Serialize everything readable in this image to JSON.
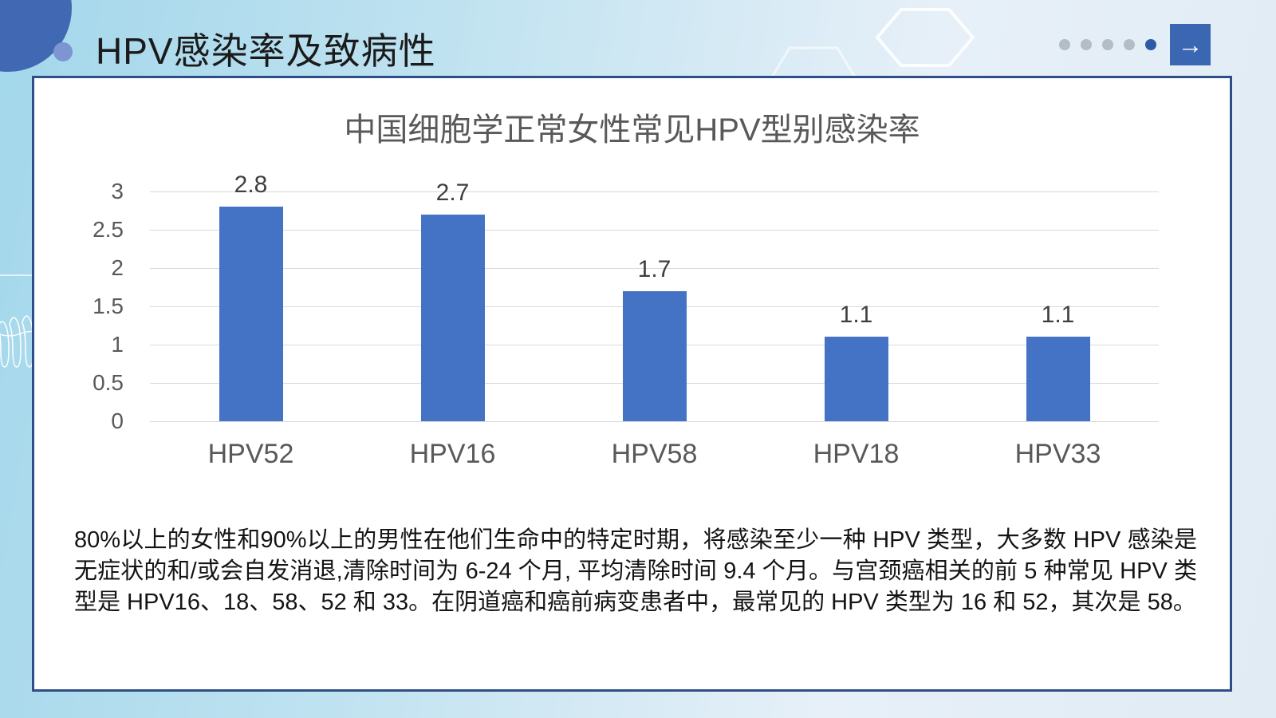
{
  "slide": {
    "title": "HPV感染率及致病性",
    "pagination": {
      "dots": [
        false,
        false,
        false,
        false,
        true
      ]
    },
    "next_button_icon": "→"
  },
  "colors": {
    "accent_blue": "#4472c4",
    "card_border": "#2e4e86",
    "active_dot": "#2d5ba7",
    "inactive_dot": "#b4bdc5",
    "axis_text": "#595959"
  },
  "chart_data": {
    "type": "bar",
    "title": "中国细胞学正常女性常见HPV型别感染率",
    "categories": [
      "HPV52",
      "HPV16",
      "HPV58",
      "HPV18",
      "HPV33"
    ],
    "values": [
      2.8,
      2.7,
      1.7,
      1.1,
      1.1
    ],
    "data_labels": [
      "2.8",
      "2.7",
      "1.7",
      "1.1",
      "1.1"
    ],
    "xlabel": "",
    "ylabel": "",
    "ylim": [
      0,
      3
    ],
    "yticks": [
      0,
      0.5,
      1,
      1.5,
      2,
      2.5,
      3
    ],
    "grid": true,
    "legend": false,
    "bar_color": "#4472c4"
  },
  "body_text": "80%以上的女性和90%以上的男性在他们生命中的特定时期，将感染至少一种 HPV 类型，大多数 HPV 感染是无症状的和/或会自发消退,清除时间为 6-24 个月, 平均清除时间 9.4 个月。与宫颈癌相关的前 5 种常见 HPV 类型是 HPV16、18、58、52 和 33。在阴道癌和癌前病变患者中，最常见的 HPV 类型为 16 和 52，其次是 58。"
}
